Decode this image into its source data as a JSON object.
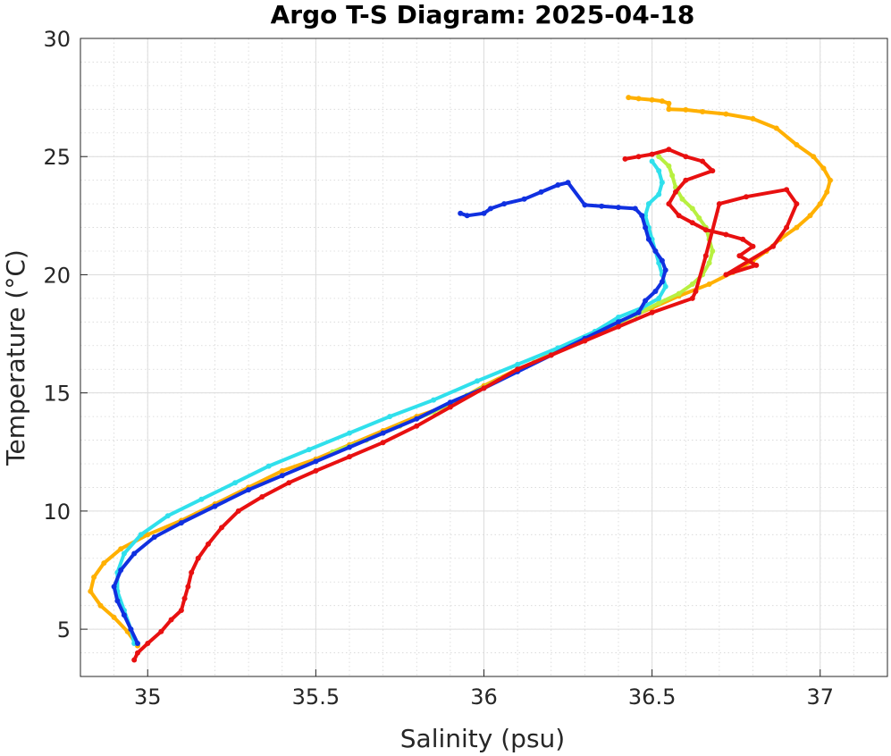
{
  "chart_data": {
    "type": "scatter",
    "title": "Argo T-S Diagram: 2025-04-18",
    "xlabel": "Salinity (psu)",
    "ylabel": "Temperature (°C)",
    "xlim": [
      34.8,
      37.2
    ],
    "ylim": [
      3,
      30
    ],
    "xticks": [
      35,
      35.5,
      36,
      36.5,
      37
    ],
    "yticks": [
      5,
      10,
      15,
      20,
      25,
      30
    ],
    "xtick_labels": [
      "35",
      "35.5",
      "36",
      "36.5",
      "37"
    ],
    "ytick_labels": [
      "5",
      "10",
      "15",
      "20",
      "25",
      "30"
    ],
    "grid": true,
    "minor_grid": true,
    "legend": "none",
    "series": [
      {
        "color": "#ffb000",
        "points": [
          [
            36.43,
            27.5
          ],
          [
            36.46,
            27.45
          ],
          [
            36.5,
            27.4
          ],
          [
            36.53,
            27.35
          ],
          [
            36.55,
            27.25
          ],
          [
            36.55,
            27.0
          ],
          [
            36.6,
            26.98
          ],
          [
            36.65,
            26.9
          ],
          [
            36.72,
            26.8
          ],
          [
            36.8,
            26.6
          ],
          [
            36.87,
            26.2
          ],
          [
            36.93,
            25.5
          ],
          [
            36.98,
            25.0
          ],
          [
            37.01,
            24.5
          ],
          [
            37.03,
            24.0
          ],
          [
            37.02,
            23.5
          ],
          [
            37.0,
            23.0
          ],
          [
            36.97,
            22.5
          ],
          [
            36.93,
            22.0
          ],
          [
            36.88,
            21.5
          ],
          [
            36.84,
            21.0
          ],
          [
            36.8,
            20.6
          ],
          [
            36.74,
            20.1
          ],
          [
            36.67,
            19.6
          ],
          [
            36.58,
            19.1
          ],
          [
            36.5,
            18.6
          ],
          [
            36.4,
            18.0
          ],
          [
            36.3,
            17.3
          ],
          [
            36.2,
            16.6
          ],
          [
            36.1,
            16.0
          ],
          [
            36.0,
            15.3
          ],
          [
            35.9,
            14.5
          ],
          [
            35.8,
            14.0
          ],
          [
            35.7,
            13.4
          ],
          [
            35.6,
            12.8
          ],
          [
            35.5,
            12.2
          ],
          [
            35.4,
            11.7
          ],
          [
            35.3,
            11.0
          ],
          [
            35.2,
            10.3
          ],
          [
            35.1,
            9.6
          ],
          [
            35.0,
            9.0
          ],
          [
            34.92,
            8.4
          ],
          [
            34.87,
            7.8
          ],
          [
            34.84,
            7.2
          ],
          [
            34.83,
            6.6
          ],
          [
            34.86,
            6.0
          ],
          [
            34.9,
            5.5
          ],
          [
            34.94,
            4.9
          ],
          [
            34.97,
            4.3
          ]
        ]
      },
      {
        "color": "#b8f040",
        "points": [
          [
            36.52,
            25.0
          ],
          [
            36.55,
            24.6
          ],
          [
            36.56,
            24.2
          ],
          [
            36.57,
            23.7
          ],
          [
            36.59,
            23.2
          ],
          [
            36.62,
            22.8
          ],
          [
            36.64,
            22.4
          ],
          [
            36.66,
            22.0
          ],
          [
            36.67,
            21.5
          ],
          [
            36.68,
            21.0
          ],
          [
            36.67,
            20.5
          ],
          [
            36.65,
            20.0
          ],
          [
            36.62,
            19.6
          ],
          [
            36.58,
            19.2
          ],
          [
            36.52,
            18.8
          ],
          [
            36.45,
            18.3
          ],
          [
            36.35,
            17.6
          ],
          [
            36.25,
            17.0
          ],
          [
            36.15,
            16.3
          ],
          [
            36.05,
            15.6
          ],
          [
            35.95,
            14.9
          ],
          [
            35.85,
            14.2
          ],
          [
            35.75,
            13.6
          ],
          [
            35.65,
            13.0
          ],
          [
            35.55,
            12.5
          ]
        ]
      },
      {
        "color": "#30e0ec",
        "points": [
          [
            36.5,
            24.8
          ],
          [
            36.52,
            24.4
          ],
          [
            36.53,
            23.9
          ],
          [
            36.52,
            23.4
          ],
          [
            36.49,
            23.0
          ],
          [
            36.48,
            22.5
          ],
          [
            36.49,
            22.0
          ],
          [
            36.5,
            21.5
          ],
          [
            36.51,
            21.0
          ],
          [
            36.52,
            20.5
          ],
          [
            36.53,
            20.0
          ],
          [
            36.54,
            19.5
          ],
          [
            36.52,
            19.0
          ],
          [
            36.47,
            18.6
          ],
          [
            36.4,
            18.2
          ],
          [
            36.33,
            17.6
          ],
          [
            36.22,
            16.9
          ],
          [
            36.1,
            16.2
          ],
          [
            35.98,
            15.5
          ],
          [
            35.85,
            14.7
          ],
          [
            35.72,
            14.0
          ],
          [
            35.6,
            13.3
          ],
          [
            35.48,
            12.6
          ],
          [
            35.36,
            11.9
          ],
          [
            35.26,
            11.2
          ],
          [
            35.16,
            10.5
          ],
          [
            35.06,
            9.8
          ],
          [
            34.98,
            9.0
          ],
          [
            34.93,
            8.2
          ],
          [
            34.91,
            7.4
          ],
          [
            34.91,
            6.6
          ],
          [
            34.93,
            5.8
          ],
          [
            34.95,
            5.0
          ],
          [
            34.96,
            4.4
          ]
        ]
      },
      {
        "color": "#1030e0",
        "points": [
          [
            35.93,
            22.6
          ],
          [
            35.95,
            22.5
          ],
          [
            36.0,
            22.6
          ],
          [
            36.02,
            22.8
          ],
          [
            36.06,
            23.0
          ],
          [
            36.12,
            23.2
          ],
          [
            36.17,
            23.5
          ],
          [
            36.22,
            23.8
          ],
          [
            36.25,
            23.9
          ],
          [
            36.3,
            22.95
          ],
          [
            36.35,
            22.9
          ],
          [
            36.4,
            22.85
          ],
          [
            36.45,
            22.8
          ],
          [
            36.47,
            22.5
          ],
          [
            36.48,
            22.0
          ],
          [
            36.49,
            21.5
          ],
          [
            36.51,
            21.0
          ],
          [
            36.53,
            20.6
          ],
          [
            36.54,
            20.2
          ],
          [
            36.53,
            19.7
          ],
          [
            36.51,
            19.3
          ],
          [
            36.48,
            18.9
          ],
          [
            36.46,
            18.4
          ],
          [
            36.4,
            18.0
          ],
          [
            36.3,
            17.3
          ],
          [
            36.2,
            16.6
          ],
          [
            36.1,
            15.9
          ],
          [
            36.0,
            15.2
          ],
          [
            35.9,
            14.6
          ],
          [
            35.8,
            13.9
          ],
          [
            35.7,
            13.3
          ],
          [
            35.6,
            12.7
          ],
          [
            35.5,
            12.1
          ],
          [
            35.4,
            11.5
          ],
          [
            35.3,
            10.9
          ],
          [
            35.2,
            10.2
          ],
          [
            35.1,
            9.5
          ],
          [
            35.02,
            8.9
          ],
          [
            34.96,
            8.2
          ],
          [
            34.92,
            7.5
          ],
          [
            34.9,
            6.8
          ],
          [
            34.91,
            6.2
          ],
          [
            34.93,
            5.6
          ],
          [
            34.95,
            5.0
          ],
          [
            34.97,
            4.4
          ]
        ]
      },
      {
        "color": "#e81010",
        "points": [
          [
            36.42,
            24.9
          ],
          [
            36.46,
            25.0
          ],
          [
            36.5,
            25.1
          ],
          [
            36.55,
            25.3
          ],
          [
            36.6,
            25.0
          ],
          [
            36.65,
            24.8
          ],
          [
            36.68,
            24.4
          ],
          [
            36.6,
            24.0
          ],
          [
            36.57,
            23.5
          ],
          [
            36.55,
            23.0
          ],
          [
            36.58,
            22.5
          ],
          [
            36.62,
            22.2
          ],
          [
            36.66,
            21.9
          ],
          [
            36.72,
            21.7
          ],
          [
            36.77,
            21.5
          ],
          [
            36.8,
            21.2
          ],
          [
            36.76,
            20.8
          ],
          [
            36.81,
            20.4
          ],
          [
            36.72,
            20.0
          ],
          [
            36.86,
            21.2
          ],
          [
            36.9,
            22.0
          ],
          [
            36.93,
            23.0
          ],
          [
            36.9,
            23.6
          ],
          [
            36.78,
            23.3
          ],
          [
            36.7,
            23.0
          ],
          [
            36.66,
            20.8
          ],
          [
            36.63,
            19.3
          ],
          [
            36.62,
            19.0
          ],
          [
            36.5,
            18.4
          ],
          [
            36.4,
            17.8
          ],
          [
            36.3,
            17.2
          ],
          [
            36.2,
            16.6
          ],
          [
            36.1,
            16.0
          ],
          [
            36.0,
            15.2
          ],
          [
            35.9,
            14.4
          ],
          [
            35.8,
            13.6
          ],
          [
            35.7,
            12.9
          ],
          [
            35.6,
            12.3
          ],
          [
            35.5,
            11.7
          ],
          [
            35.42,
            11.2
          ],
          [
            35.34,
            10.6
          ],
          [
            35.27,
            10.0
          ],
          [
            35.22,
            9.3
          ],
          [
            35.18,
            8.6
          ],
          [
            35.15,
            8.0
          ],
          [
            35.13,
            7.4
          ],
          [
            35.12,
            6.8
          ],
          [
            35.11,
            6.3
          ],
          [
            35.1,
            5.8
          ],
          [
            35.07,
            5.4
          ],
          [
            35.04,
            4.9
          ],
          [
            35.0,
            4.4
          ],
          [
            34.97,
            4.0
          ],
          [
            34.96,
            3.7
          ]
        ]
      }
    ]
  }
}
